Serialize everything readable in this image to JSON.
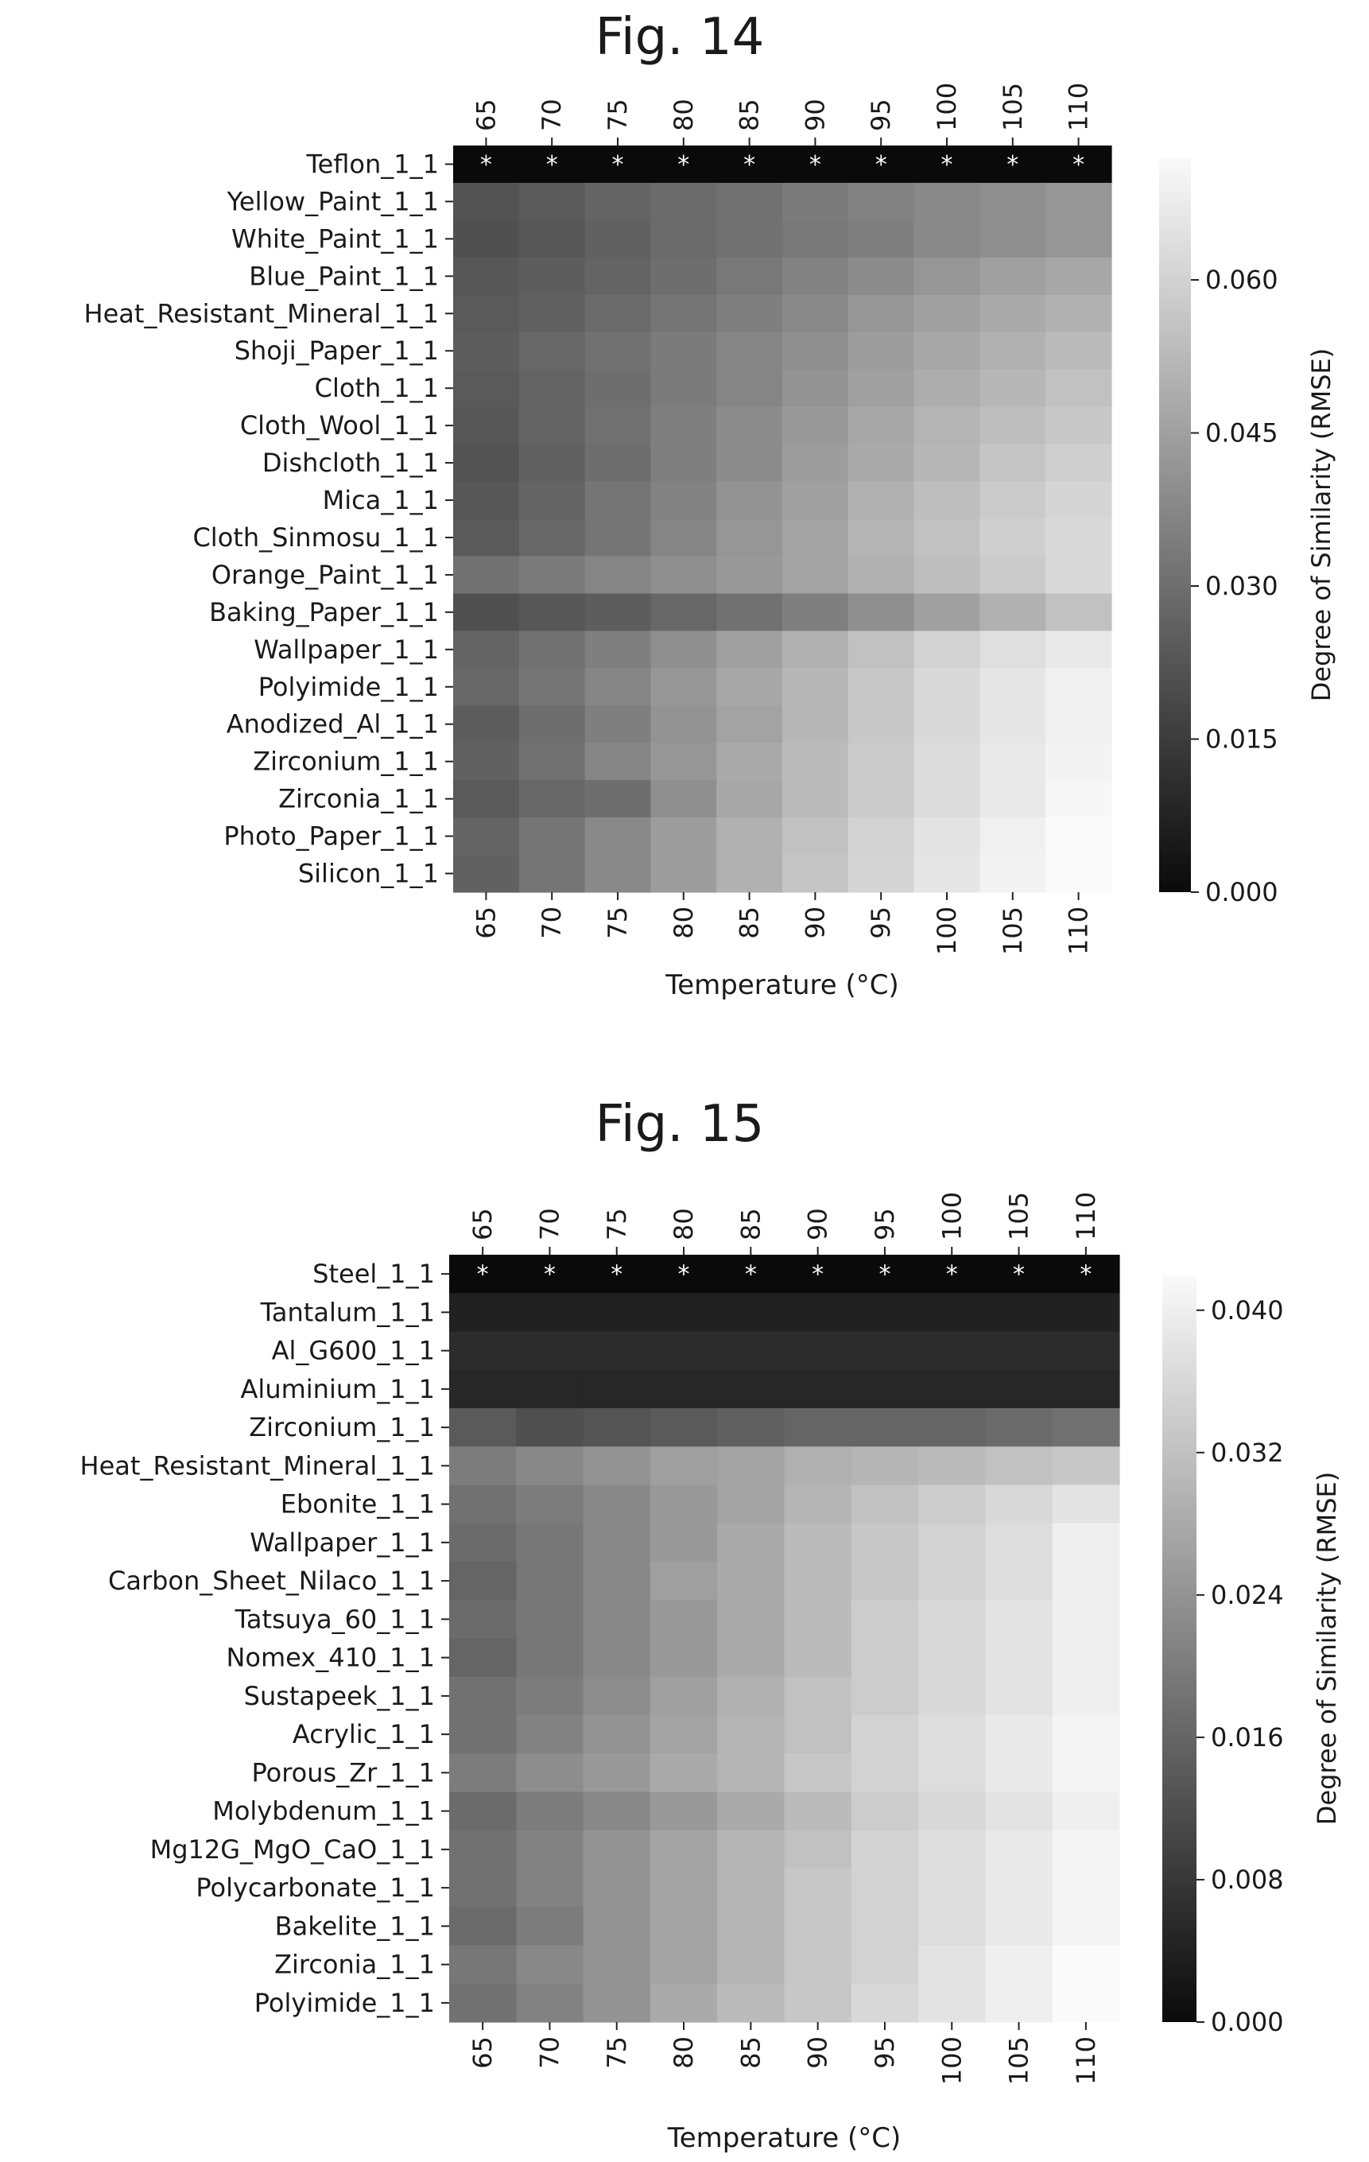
{
  "chart_data": [
    {
      "type": "heatmap",
      "title": "Fig. 14",
      "xlabel": "Temperature (°C)",
      "colorbar_label": "Degree of Similarity (RMSE)",
      "x": [
        "65",
        "70",
        "75",
        "80",
        "85",
        "90",
        "95",
        "100",
        "105",
        "110"
      ],
      "y": [
        "Teflon_1_1",
        "Yellow_Paint_1_1",
        "White_Paint_1_1",
        "Blue_Paint_1_1",
        "Heat_Resistant_Mineral_1_1",
        "Shoji_Paper_1_1",
        "Cloth_1_1",
        "Cloth_Wool_1_1",
        "Dishcloth_1_1",
        "Mica_1_1",
        "Cloth_Sinmosu_1_1",
        "Orange_Paint_1_1",
        "Baking_Paper_1_1",
        "Wallpaper_1_1",
        "Polyimide_1_1",
        "Anodized_Al_1_1",
        "Zirconium_1_1",
        "Zirconia_1_1",
        "Photo_Paper_1_1",
        "Silicon_1_1"
      ],
      "colorbar_ticks": [
        "0.000",
        "0.015",
        "0.030",
        "0.045",
        "0.060"
      ],
      "colorbar_tick_values": [
        0,
        0.015,
        0.03,
        0.045,
        0.06
      ],
      "vmin": 0,
      "vmax": 0.072,
      "colormap": "grayscale (dark = low, light = high)",
      "marker_symbol": "*",
      "marker_row": "Teflon_1_1",
      "values": [
        [
          0,
          0,
          0,
          0,
          0,
          0,
          0,
          0,
          0,
          0
        ],
        [
          0.022,
          0.024,
          0.027,
          0.029,
          0.031,
          0.034,
          0.036,
          0.038,
          0.04,
          0.042
        ],
        [
          0.021,
          0.023,
          0.026,
          0.029,
          0.031,
          0.033,
          0.035,
          0.038,
          0.04,
          0.042
        ],
        [
          0.023,
          0.025,
          0.027,
          0.03,
          0.033,
          0.036,
          0.039,
          0.042,
          0.045,
          0.047
        ],
        [
          0.024,
          0.026,
          0.029,
          0.032,
          0.035,
          0.038,
          0.042,
          0.045,
          0.048,
          0.05
        ],
        [
          0.025,
          0.028,
          0.031,
          0.034,
          0.037,
          0.04,
          0.044,
          0.047,
          0.05,
          0.053
        ],
        [
          0.024,
          0.027,
          0.03,
          0.034,
          0.037,
          0.041,
          0.045,
          0.049,
          0.052,
          0.055
        ],
        [
          0.023,
          0.027,
          0.031,
          0.035,
          0.039,
          0.043,
          0.047,
          0.051,
          0.054,
          0.057
        ],
        [
          0.022,
          0.026,
          0.03,
          0.035,
          0.039,
          0.044,
          0.048,
          0.052,
          0.056,
          0.059
        ],
        [
          0.023,
          0.027,
          0.032,
          0.036,
          0.041,
          0.045,
          0.05,
          0.054,
          0.058,
          0.061
        ],
        [
          0.024,
          0.028,
          0.032,
          0.037,
          0.042,
          0.046,
          0.051,
          0.055,
          0.059,
          0.062
        ],
        [
          0.031,
          0.034,
          0.037,
          0.04,
          0.043,
          0.046,
          0.05,
          0.054,
          0.058,
          0.062
        ],
        [
          0.021,
          0.023,
          0.025,
          0.028,
          0.031,
          0.035,
          0.04,
          0.045,
          0.05,
          0.055
        ],
        [
          0.027,
          0.031,
          0.035,
          0.04,
          0.045,
          0.05,
          0.055,
          0.06,
          0.064,
          0.067
        ],
        [
          0.028,
          0.032,
          0.037,
          0.042,
          0.047,
          0.052,
          0.057,
          0.062,
          0.066,
          0.069
        ],
        [
          0.025,
          0.03,
          0.035,
          0.041,
          0.046,
          0.052,
          0.057,
          0.062,
          0.066,
          0.069
        ],
        [
          0.026,
          0.031,
          0.037,
          0.042,
          0.048,
          0.053,
          0.058,
          0.063,
          0.067,
          0.07
        ],
        [
          0.024,
          0.028,
          0.03,
          0.04,
          0.047,
          0.053,
          0.058,
          0.063,
          0.067,
          0.071
        ],
        [
          0.027,
          0.032,
          0.038,
          0.044,
          0.05,
          0.055,
          0.06,
          0.065,
          0.069,
          0.072
        ],
        [
          0.026,
          0.032,
          0.038,
          0.044,
          0.05,
          0.056,
          0.061,
          0.066,
          0.07,
          0.072
        ]
      ]
    },
    {
      "type": "heatmap",
      "title": "Fig. 15",
      "xlabel": "Temperature (°C)",
      "colorbar_label": "Degree of Similarity (RMSE)",
      "x": [
        "65",
        "70",
        "75",
        "80",
        "85",
        "90",
        "95",
        "100",
        "105",
        "110"
      ],
      "y": [
        "Steel_1_1",
        "Tantalum_1_1",
        "Al_G600_1_1",
        "Aluminium_1_1",
        "Zirconium_1_1",
        "Heat_Resistant_Mineral_1_1",
        "Ebonite_1_1",
        "Wallpaper_1_1",
        "Carbon_Sheet_Nilaco_1_1",
        "Tatsuya_60_1_1",
        "Nomex_410_1_1",
        "Sustapeek_1_1",
        "Acrylic_1_1",
        "Porous_Zr_1_1",
        "Molybdenum_1_1",
        "Mg12G_MgO_CaO_1_1",
        "Polycarbonate_1_1",
        "Bakelite_1_1",
        "Zirconia_1_1",
        "Polyimide_1_1"
      ],
      "colorbar_ticks": [
        "0.000",
        "0.008",
        "0.016",
        "0.024",
        "0.032",
        "0.040"
      ],
      "colorbar_tick_values": [
        0,
        0.008,
        0.016,
        0.024,
        0.032,
        0.04
      ],
      "vmin": 0,
      "vmax": 0.042,
      "colormap": "grayscale (dark = low, light = high)",
      "marker_symbol": "*",
      "marker_row": "Steel_1_1",
      "values": [
        [
          0,
          0,
          0,
          0,
          0,
          0,
          0,
          0,
          0,
          0
        ],
        [
          0.004,
          0.004,
          0.004,
          0.004,
          0.004,
          0.004,
          0.004,
          0.004,
          0.004,
          0.004
        ],
        [
          0.006,
          0.006,
          0.006,
          0.006,
          0.006,
          0.006,
          0.006,
          0.006,
          0.006,
          0.006
        ],
        [
          0.005,
          0.005,
          0.005,
          0.005,
          0.005,
          0.005,
          0.005,
          0.005,
          0.005,
          0.005
        ],
        [
          0.014,
          0.012,
          0.013,
          0.014,
          0.015,
          0.016,
          0.016,
          0.016,
          0.017,
          0.018
        ],
        [
          0.02,
          0.022,
          0.024,
          0.026,
          0.027,
          0.029,
          0.03,
          0.031,
          0.032,
          0.033
        ],
        [
          0.018,
          0.02,
          0.022,
          0.025,
          0.027,
          0.03,
          0.032,
          0.034,
          0.036,
          0.038
        ],
        [
          0.017,
          0.019,
          0.022,
          0.025,
          0.028,
          0.031,
          0.033,
          0.035,
          0.037,
          0.04
        ],
        [
          0.016,
          0.019,
          0.022,
          0.026,
          0.028,
          0.031,
          0.033,
          0.035,
          0.037,
          0.04
        ],
        [
          0.017,
          0.019,
          0.022,
          0.025,
          0.028,
          0.031,
          0.034,
          0.036,
          0.038,
          0.04
        ],
        [
          0.016,
          0.019,
          0.022,
          0.025,
          0.028,
          0.031,
          0.034,
          0.036,
          0.038,
          0.04
        ],
        [
          0.018,
          0.02,
          0.023,
          0.026,
          0.029,
          0.032,
          0.034,
          0.036,
          0.038,
          0.04
        ],
        [
          0.018,
          0.021,
          0.024,
          0.027,
          0.03,
          0.032,
          0.035,
          0.037,
          0.039,
          0.041
        ],
        [
          0.02,
          0.023,
          0.025,
          0.028,
          0.03,
          0.033,
          0.035,
          0.037,
          0.039,
          0.041
        ],
        [
          0.017,
          0.02,
          0.022,
          0.025,
          0.028,
          0.031,
          0.034,
          0.036,
          0.038,
          0.04
        ],
        [
          0.018,
          0.021,
          0.024,
          0.027,
          0.03,
          0.032,
          0.035,
          0.037,
          0.039,
          0.041
        ],
        [
          0.018,
          0.021,
          0.024,
          0.027,
          0.03,
          0.033,
          0.035,
          0.037,
          0.039,
          0.041
        ],
        [
          0.017,
          0.02,
          0.024,
          0.027,
          0.03,
          0.033,
          0.035,
          0.037,
          0.039,
          0.041
        ],
        [
          0.019,
          0.022,
          0.024,
          0.027,
          0.03,
          0.033,
          0.035,
          0.038,
          0.04,
          0.042
        ],
        [
          0.018,
          0.021,
          0.024,
          0.028,
          0.031,
          0.033,
          0.036,
          0.038,
          0.04,
          0.042
        ]
      ]
    }
  ]
}
